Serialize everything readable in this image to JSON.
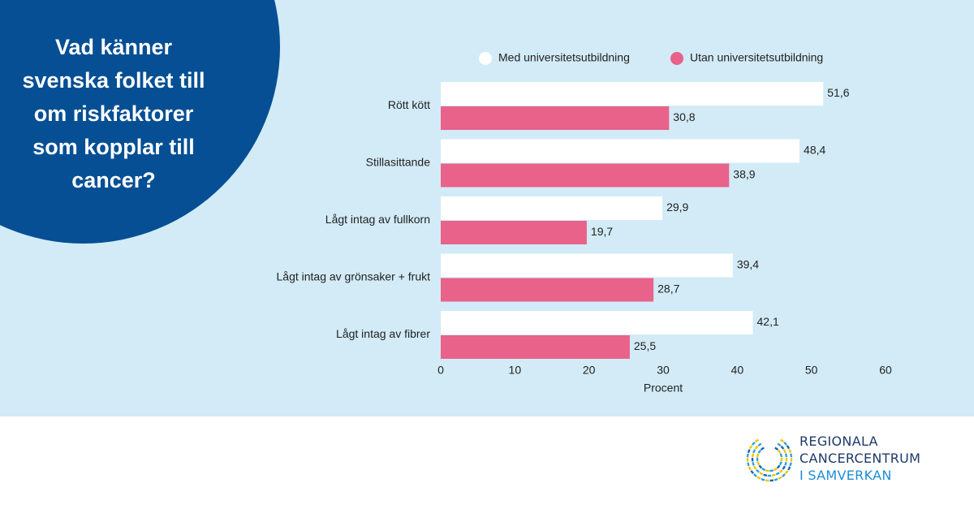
{
  "headline": {
    "lines": [
      "Vad känner",
      "svenska folket till",
      "om riskfaktorer",
      "som kopplar till",
      "cancer?"
    ]
  },
  "colors": {
    "panel_bg": "#d2ebf7",
    "circle": "#064f94",
    "series_with": "#ffffff",
    "series_without": "#e8628a"
  },
  "chart_data": {
    "type": "bar",
    "orientation": "horizontal",
    "categories": [
      "Rött kött",
      "Stillasittande",
      "Lågt intag av fullkorn",
      "Lågt intag av grönsaker + frukt",
      "Lågt intag av fibrer"
    ],
    "series": [
      {
        "name": "Med universitetsutbildning",
        "values": [
          51.6,
          48.4,
          29.9,
          39.4,
          42.1
        ],
        "labels": [
          "51,6",
          "48,4",
          "29,9",
          "39,4",
          "42,1"
        ],
        "color": "#ffffff"
      },
      {
        "name": "Utan universitetsutbildning",
        "values": [
          30.8,
          38.9,
          19.7,
          28.7,
          25.5
        ],
        "labels": [
          "30,8",
          "38,9",
          "19,7",
          "28,7",
          "25,5"
        ],
        "color": "#e8628a"
      }
    ],
    "xlabel": "Procent",
    "xlim": [
      0,
      60
    ],
    "xticks": [
      "0",
      "10",
      "20",
      "30",
      "40",
      "50",
      "60"
    ],
    "legend": "top",
    "grid": false
  },
  "logo": {
    "line1": "REGIONALA",
    "line2": "CANCERCENTRUM",
    "line3": "I SAMVERKAN"
  }
}
